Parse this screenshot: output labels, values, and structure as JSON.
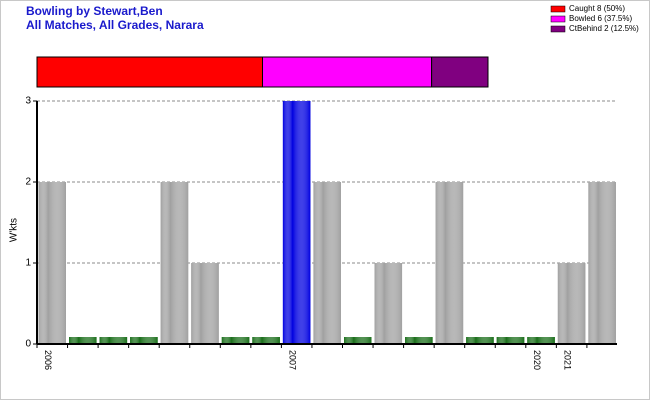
{
  "chart_data": [
    {
      "type": "stacked_summary",
      "title": "Bowling by Stewart,Ben",
      "subtitle": "All Matches, All Grades, Narara",
      "series": [
        {
          "name": "Caught 8 (50%)",
          "color": "#ff0000",
          "values": [
            8
          ]
        },
        {
          "name": "Bowled 6 (37.5%)",
          "color": "#ff00ff",
          "values": [
            6
          ]
        },
        {
          "name": "CtBehind 2 (12.5%)",
          "color": "#800080",
          "values": [
            2
          ]
        }
      ]
    },
    {
      "type": "bar",
      "ylabel": "W'kts",
      "categories": [
        "2006",
        null,
        null,
        null,
        null,
        null,
        null,
        null,
        "2007",
        null,
        null,
        null,
        null,
        null,
        null,
        null,
        "2020",
        "2021",
        null
      ],
      "values": [
        2,
        0,
        0,
        0,
        2,
        1,
        0,
        0,
        3,
        2,
        0,
        1,
        0,
        2,
        0,
        0,
        0,
        1,
        2
      ],
      "colors": [
        "#a0a0a0",
        "#1a6e1a",
        "#1a6e1a",
        "#1a6e1a",
        "#a0a0a0",
        "#a0a0a0",
        "#1a6e1a",
        "#1a6e1a",
        "#0000e0",
        "#a0a0a0",
        "#1a6e1a",
        "#a0a0a0",
        "#1a6e1a",
        "#a0a0a0",
        "#1a6e1a",
        "#1a6e1a",
        "#1a6e1a",
        "#a0a0a0",
        "#a0a0a0"
      ],
      "ylim": [
        0,
        3
      ],
      "yticks": [
        0,
        1,
        2,
        3
      ],
      "grid": true
    }
  ]
}
